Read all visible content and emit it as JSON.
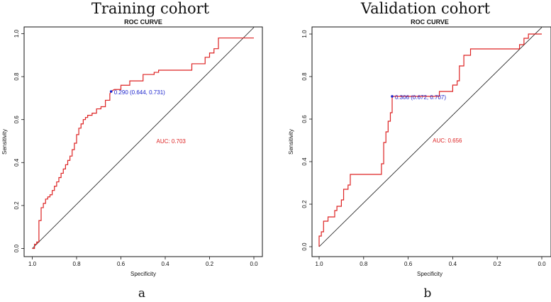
{
  "figure_title": "",
  "chart_data": [
    {
      "type": "line",
      "panel_label": "a",
      "cohort_title": "Training cohort",
      "title": "ROC CURVE",
      "xlabel": "Specificity",
      "ylabel": "Sensitivity",
      "xlim": [
        1.0,
        0.0
      ],
      "ylim": [
        0.0,
        1.0
      ],
      "x_reversed": true,
      "xticks": [
        "1.0",
        "0.8",
        "0.6",
        "0.4",
        "0.2",
        "0.0"
      ],
      "yticks": [
        "0.0",
        "0.2",
        "0.4",
        "0.6",
        "0.8",
        "1.0"
      ],
      "grid": false,
      "line_color": "#dd2222",
      "diagonal_color": "#111111",
      "annotation_color": "#1a22cc",
      "auc_label": "AUC: 0.703",
      "auc_position": {
        "specificity": 0.44,
        "sensitivity": 0.49
      },
      "threshold_label": "0.290 (0.644, 0.731)",
      "threshold_point": {
        "specificity": 0.644,
        "sensitivity": 0.731
      },
      "series": [
        {
          "specificity": [
            1.0,
            0.99,
            0.99,
            0.98,
            0.98,
            0.97,
            0.97,
            0.96,
            0.96,
            0.95,
            0.95,
            0.94,
            0.94,
            0.93,
            0.93,
            0.92,
            0.92,
            0.91,
            0.91,
            0.9,
            0.9,
            0.89,
            0.89,
            0.88,
            0.88,
            0.87,
            0.87,
            0.86,
            0.86,
            0.85,
            0.85,
            0.84,
            0.84,
            0.83,
            0.83,
            0.82,
            0.82,
            0.81,
            0.81,
            0.8,
            0.8,
            0.79,
            0.79,
            0.78,
            0.78,
            0.77,
            0.77,
            0.76,
            0.76,
            0.75,
            0.75,
            0.73,
            0.73,
            0.71,
            0.71,
            0.69,
            0.69,
            0.67,
            0.67,
            0.65,
            0.65,
            0.644,
            0.63,
            0.6,
            0.6,
            0.56,
            0.56,
            0.5,
            0.5,
            0.45,
            0.45,
            0.43,
            0.43,
            0.28,
            0.28,
            0.22,
            0.22,
            0.2,
            0.2,
            0.18,
            0.18,
            0.16,
            0.16,
            0.0
          ],
          "sensitivity": [
            0.0,
            0.0,
            0.02,
            0.02,
            0.03,
            0.03,
            0.13,
            0.13,
            0.19,
            0.19,
            0.21,
            0.21,
            0.23,
            0.23,
            0.24,
            0.24,
            0.25,
            0.25,
            0.27,
            0.27,
            0.29,
            0.29,
            0.31,
            0.31,
            0.33,
            0.33,
            0.35,
            0.35,
            0.37,
            0.37,
            0.39,
            0.39,
            0.41,
            0.41,
            0.43,
            0.43,
            0.46,
            0.46,
            0.49,
            0.49,
            0.53,
            0.53,
            0.56,
            0.56,
            0.58,
            0.58,
            0.6,
            0.6,
            0.61,
            0.61,
            0.62,
            0.62,
            0.63,
            0.63,
            0.65,
            0.65,
            0.66,
            0.66,
            0.69,
            0.69,
            0.72,
            0.731,
            0.74,
            0.74,
            0.76,
            0.76,
            0.78,
            0.78,
            0.81,
            0.81,
            0.82,
            0.82,
            0.83,
            0.83,
            0.86,
            0.86,
            0.89,
            0.89,
            0.91,
            0.91,
            0.93,
            0.93,
            0.98,
            0.98
          ]
        }
      ]
    },
    {
      "type": "line",
      "panel_label": "b",
      "cohort_title": "Validation cohort",
      "title": "ROC CURVE",
      "xlabel": "Specificity",
      "ylabel": "Sensitivity",
      "xlim": [
        1.0,
        0.0
      ],
      "ylim": [
        0.0,
        1.0
      ],
      "x_reversed": true,
      "xticks": [
        "1.0",
        "0.8",
        "0.6",
        "0.4",
        "0.2",
        "0.0"
      ],
      "yticks": [
        "0.0",
        "0.2",
        "0.4",
        "0.6",
        "0.8",
        "1.0"
      ],
      "grid": false,
      "line_color": "#dd2222",
      "diagonal_color": "#111111",
      "annotation_color": "#1a22cc",
      "auc_label": "AUC: 0.656",
      "auc_position": {
        "specificity": 0.49,
        "sensitivity": 0.49
      },
      "threshold_label": "0.306 (0.672, 0.707)",
      "threshold_point": {
        "specificity": 0.672,
        "sensitivity": 0.707
      },
      "series": [
        {
          "specificity": [
            1.0,
            1.0,
            0.99,
            0.99,
            0.98,
            0.98,
            0.96,
            0.96,
            0.93,
            0.93,
            0.92,
            0.92,
            0.9,
            0.9,
            0.89,
            0.89,
            0.87,
            0.87,
            0.86,
            0.86,
            0.84,
            0.84,
            0.72,
            0.72,
            0.71,
            0.71,
            0.7,
            0.7,
            0.69,
            0.69,
            0.68,
            0.68,
            0.672,
            0.672,
            0.46,
            0.46,
            0.4,
            0.4,
            0.38,
            0.38,
            0.37,
            0.37,
            0.35,
            0.35,
            0.32,
            0.32,
            0.1,
            0.1,
            0.08,
            0.08,
            0.06,
            0.06,
            0.0
          ],
          "sensitivity": [
            0.0,
            0.05,
            0.05,
            0.07,
            0.07,
            0.12,
            0.12,
            0.14,
            0.14,
            0.17,
            0.17,
            0.19,
            0.19,
            0.22,
            0.22,
            0.27,
            0.27,
            0.29,
            0.29,
            0.34,
            0.34,
            0.34,
            0.34,
            0.39,
            0.39,
            0.49,
            0.49,
            0.54,
            0.54,
            0.59,
            0.59,
            0.63,
            0.63,
            0.707,
            0.707,
            0.73,
            0.73,
            0.76,
            0.76,
            0.78,
            0.78,
            0.85,
            0.85,
            0.9,
            0.9,
            0.93,
            0.93,
            0.95,
            0.95,
            0.98,
            0.98,
            1.0,
            1.0
          ]
        }
      ]
    }
  ]
}
